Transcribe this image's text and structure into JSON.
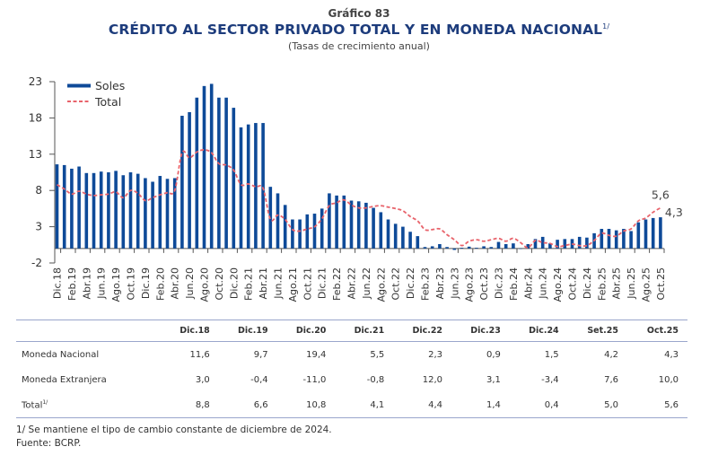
{
  "header": {
    "number": "Gráfico 83",
    "title": "CRÉDITO AL SECTOR PRIVADO TOTAL Y EN MONEDA NACIONAL",
    "title_note": "1/",
    "subtitle": "(Tasas de crecimiento anual)"
  },
  "colors": {
    "soles": "#0e4a98",
    "total": "#e8636b",
    "title": "#1d3c7c"
  },
  "chart_data": {
    "type": "bar+line",
    "title": "",
    "ylim": [
      -2,
      23
    ],
    "yticks": [
      -2,
      3,
      8,
      13,
      18,
      23
    ],
    "legend": "top-left",
    "xtick_labels": [
      "Dic.18",
      "Feb.19",
      "Abr.19",
      "Jun.19",
      "Ago.19",
      "Oct.19",
      "Dic.19",
      "Feb.20",
      "Abr.20",
      "Jun.20",
      "Ago.20",
      "Oct.20",
      "Dic.20",
      "Feb.21",
      "Abr.21",
      "Jun.21",
      "Ago.21",
      "Oct.21",
      "Dic.21",
      "Feb.22",
      "Abr.22",
      "Jun.22",
      "Ago.22",
      "Oct.22",
      "Dic.22",
      "Feb.23",
      "Abr.23",
      "Jun.23",
      "Ago.23",
      "Oct.23",
      "Dic.23",
      "Feb.24",
      "Abr.24",
      "Jun.24",
      "Ago.24",
      "Oct.24",
      "Dic.24",
      "Feb.25",
      "Abr.25",
      "Jun.25",
      "Ago.25",
      "Oct.25"
    ],
    "series": [
      {
        "name": "Soles",
        "type": "bar",
        "values": [
          11.6,
          11.5,
          11.0,
          11.3,
          10.4,
          10.4,
          10.6,
          10.5,
          10.7,
          10.1,
          10.5,
          10.3,
          9.7,
          9.2,
          10.0,
          9.6,
          9.7,
          18.3,
          18.8,
          20.8,
          22.4,
          22.7,
          20.8,
          20.8,
          19.4,
          16.7,
          17.1,
          17.3,
          17.3,
          8.5,
          7.6,
          6.0,
          4.0,
          4.0,
          4.7,
          4.8,
          5.5,
          7.6,
          7.3,
          7.3,
          6.6,
          6.5,
          6.3,
          5.6,
          5.0,
          4.0,
          3.4,
          3.0,
          2.3,
          1.7,
          0.2,
          0.3,
          0.6,
          0.2,
          -0.2,
          0.1,
          0.25,
          0.1,
          0.3,
          0.2,
          0.9,
          0.6,
          0.7,
          0.0,
          0.6,
          1.3,
          1.6,
          0.7,
          1.2,
          1.3,
          1.3,
          1.6,
          1.5,
          2.1,
          2.7,
          2.7,
          2.5,
          2.7,
          2.4,
          3.6,
          4.0,
          4.2,
          4.3
        ]
      },
      {
        "name": "Total",
        "type": "line",
        "values": [
          8.8,
          8.2,
          7.5,
          7.9,
          7.5,
          7.3,
          7.4,
          7.5,
          7.8,
          7.0,
          8.0,
          7.6,
          6.6,
          7.0,
          7.4,
          7.7,
          8.0,
          13.2,
          12.5,
          13.3,
          13.6,
          13.2,
          11.7,
          11.5,
          10.8,
          8.8,
          8.9,
          8.5,
          8.3,
          4.0,
          4.6,
          4.0,
          2.6,
          2.4,
          2.7,
          3.0,
          4.1,
          5.9,
          6.3,
          6.7,
          6.0,
          5.6,
          5.6,
          5.8,
          5.9,
          5.7,
          5.5,
          5.2,
          4.4,
          3.8,
          2.6,
          2.6,
          2.7,
          1.9,
          1.2,
          0.4,
          1.0,
          1.2,
          1.0,
          1.2,
          1.4,
          1.0,
          1.4,
          0.8,
          0.1,
          1.1,
          0.8,
          0.7,
          0.25,
          0.4,
          0.6,
          0.4,
          0.4,
          1.1,
          2.1,
          1.8,
          1.7,
          2.4,
          2.7,
          3.8,
          4.2,
          5.0,
          5.6
        ]
      }
    ],
    "annotations": [
      {
        "series": "Total",
        "text": "5,6"
      },
      {
        "series": "Soles",
        "text": "4,3"
      }
    ]
  },
  "table": {
    "headers": [
      "Dic.18",
      "Dic.19",
      "Dic.20",
      "Dic.21",
      "Dic.22",
      "Dic.23",
      "Dic.24",
      "Set.25",
      "Oct.25"
    ],
    "rows": [
      {
        "label": "Moneda Nacional",
        "note": "",
        "values": [
          "11,6",
          "9,7",
          "19,4",
          "5,5",
          "2,3",
          "0,9",
          "1,5",
          "4,2",
          "4,3"
        ]
      },
      {
        "label": "Moneda Extranjera",
        "note": "",
        "values": [
          "3,0",
          "-0,4",
          "-11,0",
          "-0,8",
          "12,0",
          "3,1",
          "-3,4",
          "7,6",
          "10,0"
        ]
      },
      {
        "label": "Total",
        "note": "1/",
        "values": [
          "8,8",
          "6,6",
          "10,8",
          "4,1",
          "4,4",
          "1,4",
          "0,4",
          "5,0",
          "5,6"
        ]
      }
    ]
  },
  "footer": {
    "note": "1/  Se mantiene el tipo de cambio constante de diciembre de 2024.",
    "source": "Fuente: BCRP."
  }
}
